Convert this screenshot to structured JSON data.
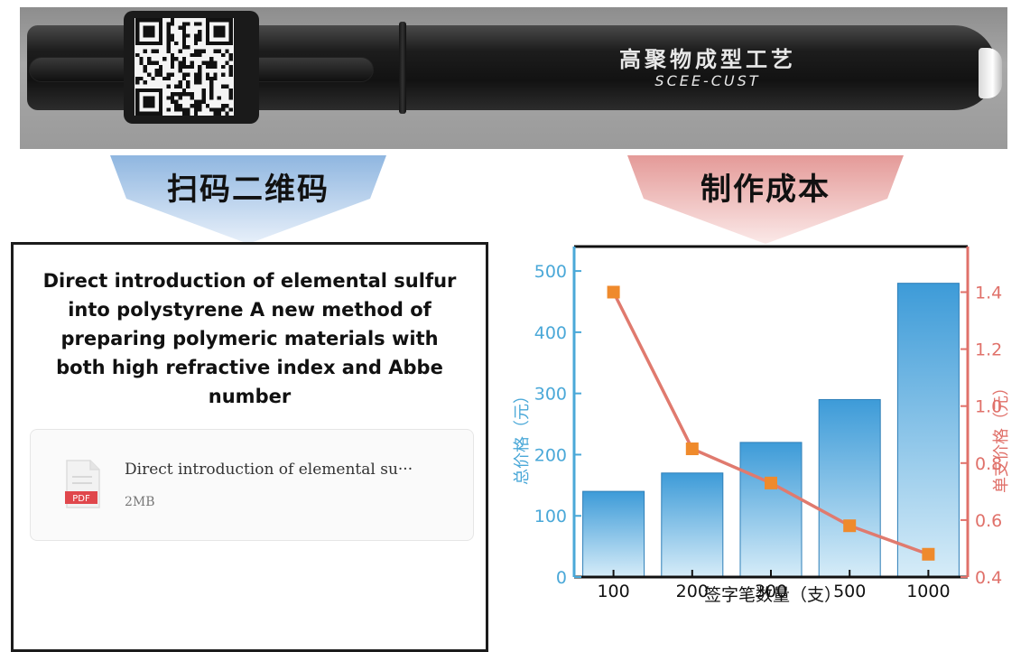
{
  "photo": {
    "brand_cn": "高聚物成型工艺",
    "brand_en": "SCEE-CUST"
  },
  "arrows": {
    "left_label": "扫码二维码",
    "right_label": "制作成本",
    "left_color": "#8fb6e0",
    "right_color": "#e49a98"
  },
  "document": {
    "title": "Direct introduction of elemental sulfur into polystyrene A new method of preparing polymeric materials with both high refractive index and Abbe number",
    "file_name": "Direct introduction of elemental su···",
    "file_size": "2MB",
    "file_badge": "PDF"
  },
  "chart_data": {
    "type": "bar",
    "categories": [
      "100",
      "200",
      "300",
      "500",
      "1000"
    ],
    "xlabel": "签字笔数量（支）",
    "ylabel": "总价格（元）",
    "y2label": "单支价格（元）",
    "ylim": [
      0,
      540
    ],
    "y2lim": [
      0.4,
      1.56
    ],
    "yticks": [
      "0",
      "100",
      "200",
      "300",
      "400",
      "500"
    ],
    "y2ticks": [
      "0.4",
      "0.6",
      "0.8",
      "1.0",
      "1.2",
      "1.4"
    ],
    "series": [
      {
        "type": "bar",
        "axis": "left",
        "values": [
          140,
          170,
          220,
          290,
          480
        ],
        "color": "#4aa3da"
      },
      {
        "type": "line",
        "axis": "right",
        "values": [
          1.4,
          0.85,
          0.73,
          0.58,
          0.48
        ],
        "color": "#e07a6e",
        "marker_color": "#ef8a2c"
      }
    ],
    "left_axis_color": "#4aa8d8",
    "right_axis_color": "#e0716a"
  }
}
